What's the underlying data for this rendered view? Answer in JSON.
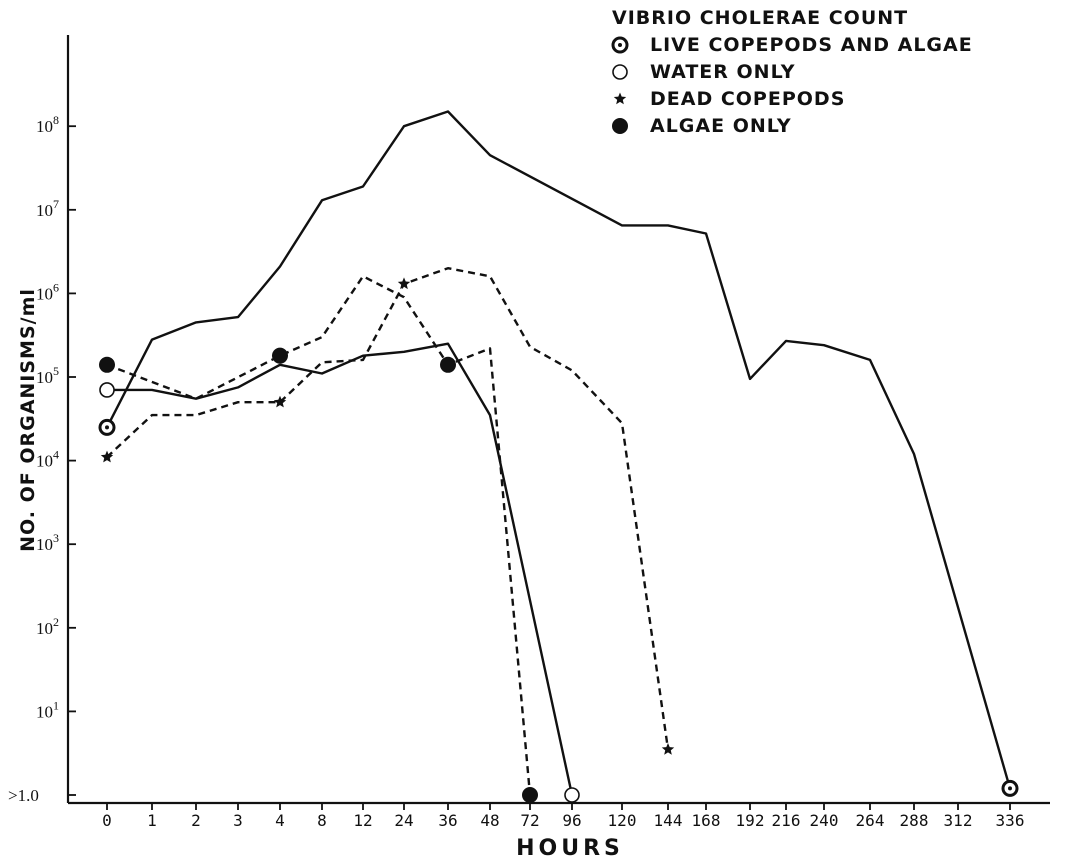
{
  "chart_data": {
    "type": "line",
    "title": "VIBRIO CHOLERAE COUNT",
    "xlabel": "HOURS",
    "ylabel": "NO. OF ORGANISMS/ml",
    "y_scale": "log",
    "ylim": [
      1,
      1000000000
    ],
    "categories": [
      "0",
      "1",
      "2",
      "3",
      "4",
      "8",
      "12",
      "24",
      "36",
      "48",
      "72",
      "96",
      "120",
      "144",
      "168",
      "192",
      "216",
      "240",
      "264",
      "288",
      "312",
      "336"
    ],
    "y_ticks": [
      {
        "base": ">1.0",
        "exp": ""
      },
      {
        "base": "10",
        "exp": "1"
      },
      {
        "base": "10",
        "exp": "2"
      },
      {
        "base": "10",
        "exp": "3"
      },
      {
        "base": "10",
        "exp": "4"
      },
      {
        "base": "10",
        "exp": "5"
      },
      {
        "base": "10",
        "exp": "6"
      },
      {
        "base": "10",
        "exp": "7"
      },
      {
        "base": "10",
        "exp": "8"
      }
    ],
    "legend": {
      "placement": "top-right",
      "title": "VIBRIO CHOLERAE COUNT",
      "entries": [
        {
          "label": "LIVE COPEPODS AND ALGAE",
          "marker": "dotted-circle"
        },
        {
          "label": "WATER  ONLY",
          "marker": "open-circle"
        },
        {
          "label": "DEAD COPEPODS",
          "marker": "star"
        },
        {
          "label": "ALGAE  ONLY",
          "marker": "filled-circle"
        }
      ]
    },
    "series": [
      {
        "name": "LIVE COPEPODS AND ALGAE",
        "line_style": "solid",
        "marker": "dotted-circle",
        "points": [
          {
            "x": "0",
            "y": 25000,
            "marker": true
          },
          {
            "x": "1",
            "y": 280000
          },
          {
            "x": "2",
            "y": 450000
          },
          {
            "x": "3",
            "y": 520000
          },
          {
            "x": "4",
            "y": 2100000
          },
          {
            "x": "8",
            "y": 13000000
          },
          {
            "x": "12",
            "y": 19000000
          },
          {
            "x": "24",
            "y": 100000000
          },
          {
            "x": "36",
            "y": 150000000
          },
          {
            "x": "48",
            "y": 45000000
          },
          {
            "x": "120",
            "y": 6500000
          },
          {
            "x": "144",
            "y": 6500000
          },
          {
            "x": "168",
            "y": 5200000
          },
          {
            "x": "192",
            "y": 95000
          },
          {
            "x": "216",
            "y": 270000
          },
          {
            "x": "240",
            "y": 240000
          },
          {
            "x": "264",
            "y": 160000
          },
          {
            "x": "288",
            "y": 12000
          },
          {
            "x": "336",
            "y": 1.2,
            "marker": true
          }
        ]
      },
      {
        "name": "WATER  ONLY",
        "line_style": "solid",
        "marker": "open-circle",
        "points": [
          {
            "x": "0",
            "y": 70000,
            "marker": true
          },
          {
            "x": "1",
            "y": 70000
          },
          {
            "x": "2",
            "y": 55000
          },
          {
            "x": "3",
            "y": 75000
          },
          {
            "x": "4",
            "y": 140000
          },
          {
            "x": "8",
            "y": 110000
          },
          {
            "x": "12",
            "y": 180000
          },
          {
            "x": "24",
            "y": 200000
          },
          {
            "x": "36",
            "y": 250000
          },
          {
            "x": "48",
            "y": 35000
          },
          {
            "x": "96",
            "y": 1,
            "marker": true
          }
        ]
      },
      {
        "name": "DEAD COPEPODS",
        "line_style": "dashed",
        "marker": "star",
        "points": [
          {
            "x": "0",
            "y": 11000,
            "marker": true
          },
          {
            "x": "1",
            "y": 35000
          },
          {
            "x": "2",
            "y": 35000
          },
          {
            "x": "3",
            "y": 50000
          },
          {
            "x": "4",
            "y": 50000,
            "marker": true
          },
          {
            "x": "8",
            "y": 150000
          },
          {
            "x": "12",
            "y": 160000
          },
          {
            "x": "24",
            "y": 1300000,
            "marker": true
          },
          {
            "x": "36",
            "y": 2000000
          },
          {
            "x": "48",
            "y": 1600000
          },
          {
            "x": "72",
            "y": 230000
          },
          {
            "x": "96",
            "y": 120000
          },
          {
            "x": "120",
            "y": 28000
          },
          {
            "x": "144",
            "y": 3.5,
            "marker": true
          }
        ]
      },
      {
        "name": "ALGAE  ONLY",
        "line_style": "dashed",
        "marker": "filled-circle",
        "points": [
          {
            "x": "0",
            "y": 140000,
            "marker": true
          },
          {
            "x": "2",
            "y": 55000
          },
          {
            "x": "4",
            "y": 180000,
            "marker": true
          },
          {
            "x": "8",
            "y": 300000
          },
          {
            "x": "12",
            "y": 1600000
          },
          {
            "x": "24",
            "y": 900000
          },
          {
            "x": "36",
            "y": 140000,
            "marker": true
          },
          {
            "x": "48",
            "y": 220000
          },
          {
            "x": "72",
            "y": 1,
            "marker": true
          }
        ]
      }
    ]
  }
}
